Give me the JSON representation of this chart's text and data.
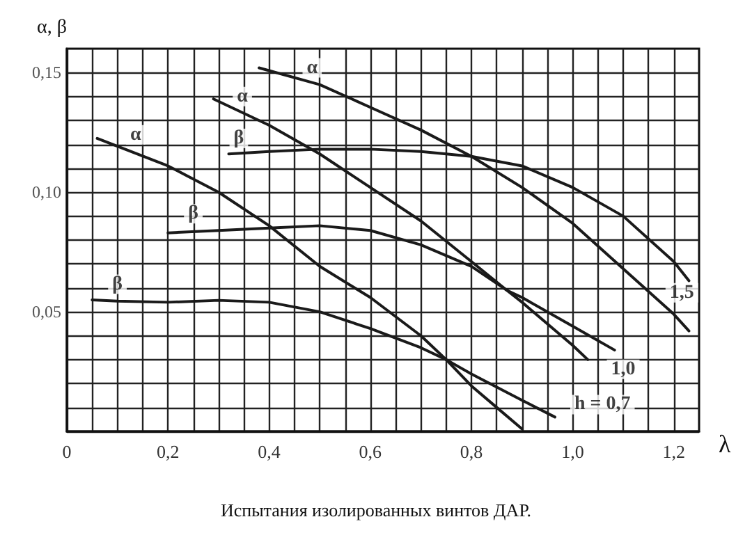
{
  "chart_data": {
    "type": "line",
    "xlabel": "λ",
    "ylabel": "α, β",
    "xlim": [
      0,
      1.25
    ],
    "ylim": [
      0,
      0.16
    ],
    "xticks": [
      {
        "value": 0,
        "label": "0"
      },
      {
        "value": 0.05,
        "label": null
      },
      {
        "value": 0.1,
        "label": null
      },
      {
        "value": 0.15,
        "label": null
      },
      {
        "value": 0.2,
        "label": "0,2"
      },
      {
        "value": 0.25,
        "label": null
      },
      {
        "value": 0.3,
        "label": null
      },
      {
        "value": 0.35,
        "label": null
      },
      {
        "value": 0.4,
        "label": "0,4"
      },
      {
        "value": 0.45,
        "label": null
      },
      {
        "value": 0.5,
        "label": null
      },
      {
        "value": 0.55,
        "label": null
      },
      {
        "value": 0.6,
        "label": "0,6"
      },
      {
        "value": 0.65,
        "label": null
      },
      {
        "value": 0.7,
        "label": null
      },
      {
        "value": 0.75,
        "label": null
      },
      {
        "value": 0.8,
        "label": "0,8"
      },
      {
        "value": 0.85,
        "label": null
      },
      {
        "value": 0.9,
        "label": null
      },
      {
        "value": 0.95,
        "label": null
      },
      {
        "value": 1.0,
        "label": "1,0"
      },
      {
        "value": 1.05,
        "label": null
      },
      {
        "value": 1.1,
        "label": null
      },
      {
        "value": 1.15,
        "label": null
      },
      {
        "value": 1.2,
        "label": "1,2"
      }
    ],
    "yticks": [
      {
        "value": 0,
        "label": null
      },
      {
        "value": 0.01,
        "label": null
      },
      {
        "value": 0.02,
        "label": null
      },
      {
        "value": 0.03,
        "label": null
      },
      {
        "value": 0.04,
        "label": null
      },
      {
        "value": 0.05,
        "label": "0,05"
      },
      {
        "value": 0.06,
        "label": null
      },
      {
        "value": 0.07,
        "label": null
      },
      {
        "value": 0.08,
        "label": null
      },
      {
        "value": 0.09,
        "label": null
      },
      {
        "value": 0.1,
        "label": "0,10"
      },
      {
        "value": 0.11,
        "label": null
      },
      {
        "value": 0.12,
        "label": null
      },
      {
        "value": 0.13,
        "label": null
      },
      {
        "value": 0.14,
        "label": null
      },
      {
        "value": 0.15,
        "label": "0,15"
      }
    ],
    "grid": true,
    "marker": "none",
    "line_style": "solid",
    "series": [
      {
        "color": "#1a1a1a",
        "x": [
          0.06,
          0.2,
          0.3,
          0.4,
          0.5,
          0.6,
          0.7,
          0.75,
          0.8,
          0.85,
          0.9
        ],
        "values": [
          0.1225,
          0.111,
          0.1,
          0.086,
          0.069,
          0.056,
          0.04,
          0.03,
          0.019,
          0.01,
          0.001
        ]
      },
      {
        "color": "#1a1a1a",
        "x": [
          0.05,
          0.1,
          0.2,
          0.3,
          0.4,
          0.5,
          0.6,
          0.7,
          0.75,
          0.8,
          0.9,
          0.965
        ],
        "values": [
          0.055,
          0.0545,
          0.054,
          0.0548,
          0.054,
          0.05,
          0.043,
          0.035,
          0.03,
          0.024,
          0.013,
          0.006
        ]
      },
      {
        "color": "#1a1a1a",
        "x": [
          0.29,
          0.4,
          0.5,
          0.6,
          0.7,
          0.8,
          0.87,
          0.9,
          1.0,
          1.03
        ],
        "values": [
          0.139,
          0.128,
          0.116,
          0.102,
          0.088,
          0.071,
          0.059,
          0.054,
          0.036,
          0.03
        ]
      },
      {
        "color": "#1a1a1a",
        "x": [
          0.2,
          0.3,
          0.4,
          0.5,
          0.6,
          0.7,
          0.8,
          0.87,
          0.9,
          1.0,
          1.083
        ],
        "values": [
          0.083,
          0.084,
          0.085,
          0.086,
          0.084,
          0.078,
          0.069,
          0.059,
          0.056,
          0.044,
          0.034
        ]
      },
      {
        "color": "#1a1a1a",
        "x": [
          0.38,
          0.5,
          0.6,
          0.7,
          0.8,
          0.9,
          1.0,
          1.1,
          1.2,
          1.23
        ],
        "values": [
          0.152,
          0.145,
          0.1355,
          0.126,
          0.115,
          0.102,
          0.087,
          0.068,
          0.049,
          0.042
        ]
      },
      {
        "color": "#1a1a1a",
        "x": [
          0.32,
          0.4,
          0.5,
          0.6,
          0.7,
          0.8,
          0.9,
          1.0,
          1.1,
          1.2,
          1.23
        ],
        "values": [
          0.116,
          0.117,
          0.118,
          0.118,
          0.117,
          0.115,
          0.111,
          0.102,
          0.09,
          0.071,
          0.063
        ]
      }
    ],
    "annotations": [
      {
        "text": "α",
        "x": 0.136,
        "y": 0.124
      },
      {
        "text": "α",
        "x": 0.347,
        "y": 0.14
      },
      {
        "text": "α",
        "x": 0.485,
        "y": 0.152
      },
      {
        "text": "β",
        "x": 0.34,
        "y": 0.1225
      },
      {
        "text": "β",
        "x": 0.25,
        "y": 0.091
      },
      {
        "text": "β",
        "x": 0.1,
        "y": 0.0615
      },
      {
        "text": "1,5",
        "x": 1.216,
        "y": 0.058
      },
      {
        "text": "1,0",
        "x": 1.1,
        "y": 0.026
      },
      {
        "text": "h = 0,7",
        "x": 0.965,
        "y": 0.006
      },
      "Испытания изолированных винтов ДАР."
    ]
  }
}
